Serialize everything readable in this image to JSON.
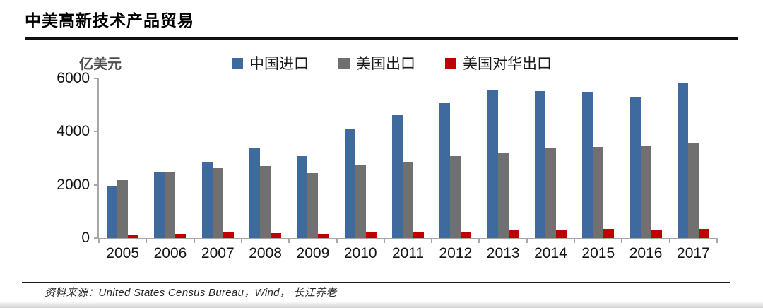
{
  "page": {
    "title": "中美高新技术产品贸易",
    "source_note": "资料来源：United States Census Bureau，Wind， 长江养老"
  },
  "chart_data": {
    "type": "bar",
    "title": "中美高新技术产品贸易",
    "unit_label": "亿美元",
    "categories": [
      "2005",
      "2006",
      "2007",
      "2008",
      "2009",
      "2010",
      "2011",
      "2012",
      "2013",
      "2014",
      "2015",
      "2016",
      "2017"
    ],
    "series": [
      {
        "name": "中国进口",
        "color": "#3F6A9D",
        "values": [
          1970,
          2470,
          2860,
          3400,
          3090,
          4120,
          4630,
          5080,
          5580,
          5520,
          5500,
          5280,
          5840
        ]
      },
      {
        "name": "美国出口",
        "color": "#707070",
        "values": [
          2180,
          2480,
          2640,
          2700,
          2450,
          2740,
          2880,
          3070,
          3210,
          3380,
          3430,
          3480,
          3550
        ]
      },
      {
        "name": "美国对华出口",
        "color": "#C00000",
        "values": [
          100,
          170,
          210,
          190,
          170,
          210,
          220,
          230,
          290,
          300,
          340,
          330,
          350
        ]
      }
    ],
    "ylabel": "亿美元",
    "ylim": [
      0,
      6000
    ],
    "yticks": [
      0,
      2000,
      4000,
      6000
    ],
    "grid": false,
    "legend_position": "top"
  },
  "colors": {
    "axis": "#a6a6a6",
    "title_rule": "#111111",
    "footer_rule": "#1a1a1a"
  }
}
